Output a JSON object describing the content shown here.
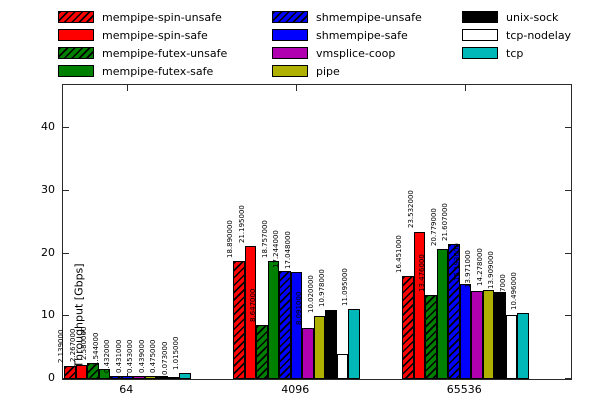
{
  "chart_data": {
    "type": "bar",
    "title": "",
    "xlabel": "",
    "ylabel": "Throughput [Gbps]",
    "categories": [
      "64",
      "4096",
      "65536"
    ],
    "y_ticks": [
      0,
      10,
      20,
      30,
      40
    ],
    "ylim": [
      0,
      46.9
    ],
    "grid": false,
    "legend_position": "top",
    "value_label_decimals": 6,
    "frame_color": "#2a2a2a",
    "background": "#ffffff",
    "series": [
      {
        "name": "mempipe-spin-unsafe",
        "color": "#ff0000",
        "hatch": true,
        "values": [
          2.139,
          18.89,
          16.451
        ]
      },
      {
        "name": "mempipe-spin-safe",
        "color": "#ff0000",
        "hatch": false,
        "values": [
          2.267,
          21.195,
          23.532
        ]
      },
      {
        "name": "mempipe-futex-unsafe",
        "color": "#008000",
        "hatch": true,
        "values": [
          2.58,
          8.647,
          13.476
        ]
      },
      {
        "name": "mempipe-futex-safe",
        "color": "#008000",
        "hatch": false,
        "values": [
          1.544,
          18.757,
          20.779
        ]
      },
      {
        "name": "shmempipe-unsafe",
        "color": "#0000ff",
        "hatch": true,
        "values": [
          0.432,
          17.244,
          21.607
        ]
      },
      {
        "name": "shmempipe-safe",
        "color": "#0000ff",
        "hatch": false,
        "values": [
          0.431,
          17.048,
          15.193
        ]
      },
      {
        "name": "vmsplice-coop",
        "color": "#b000b0",
        "hatch": false,
        "values": [
          0.453,
          8.091,
          13.971
        ]
      },
      {
        "name": "pipe",
        "color": "#b0b000",
        "hatch": false,
        "values": [
          0.439,
          10.02,
          14.278
        ]
      },
      {
        "name": "unix-sock",
        "color": "#000000",
        "hatch": false,
        "values": [
          0.475,
          10.978,
          13.909
        ]
      },
      {
        "name": "tcp-nodelay",
        "color": "#ffffff",
        "hatch": false,
        "values": [
          0.073,
          3.959,
          10.267
        ]
      },
      {
        "name": "tcp",
        "color": "#00b8b8",
        "hatch": false,
        "values": [
          1.015,
          11.095,
          10.496
        ]
      }
    ],
    "legend_columns": [
      [
        "mempipe-spin-unsafe",
        "mempipe-spin-safe",
        "mempipe-futex-unsafe",
        "mempipe-futex-safe"
      ],
      [
        "shmempipe-unsafe",
        "shmempipe-safe",
        "vmsplice-coop",
        "pipe"
      ],
      [
        "unix-sock",
        "tcp-nodelay",
        "tcp"
      ]
    ]
  }
}
